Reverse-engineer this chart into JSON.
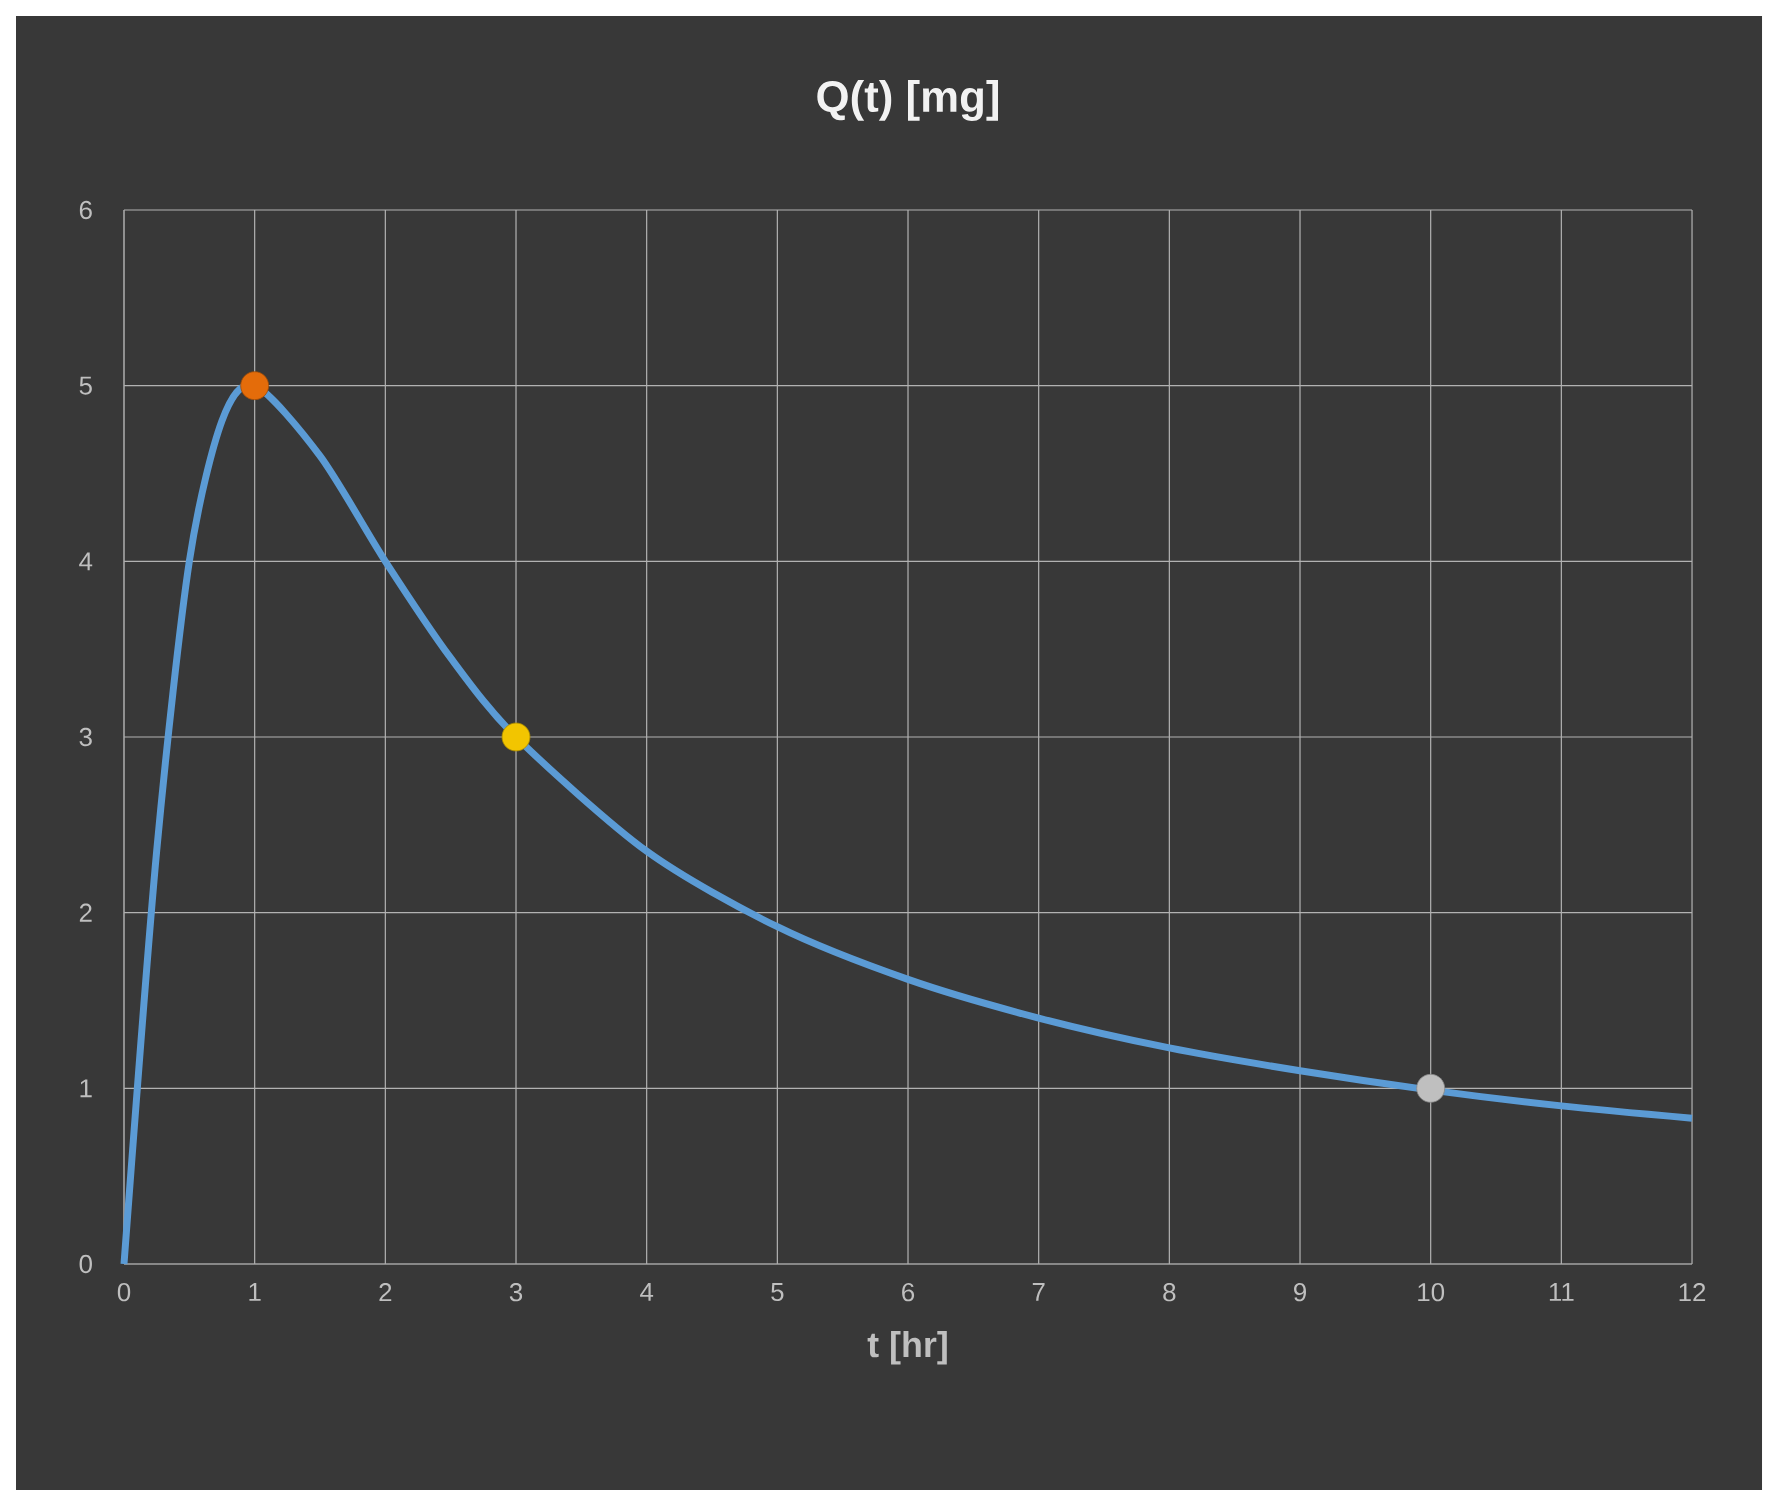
{
  "chart_data": {
    "type": "line",
    "title": "Q(t)  [mg]",
    "xlabel": "t [hr]",
    "xlim": [
      0,
      12
    ],
    "xticks": [
      0,
      1,
      2,
      3,
      4,
      5,
      6,
      7,
      8,
      9,
      10,
      11,
      12
    ],
    "ylim": [
      0,
      6
    ],
    "yticks": [
      0,
      1,
      2,
      3,
      4,
      5,
      6
    ],
    "grid": true,
    "series": [
      {
        "color": "#5b9bd5",
        "x": [
          0,
          0.25,
          0.5,
          0.75,
          1,
          1.5,
          2,
          2.5,
          3,
          4,
          5,
          6,
          7,
          8,
          9,
          10,
          11,
          12
        ],
        "values": [
          0,
          2.35,
          4.0,
          4.8,
          5.0,
          4.6,
          4.0,
          3.45,
          3.0,
          2.35,
          1.92,
          1.62,
          1.4,
          1.23,
          1.1,
          0.99,
          0.9,
          0.83
        ]
      },
      {
        "type": "scatter",
        "x": [
          1,
          3,
          10
        ],
        "values": [
          5,
          3,
          1
        ],
        "colors": [
          "#e46c0a",
          "#f2c500",
          "#bfbfbf"
        ]
      }
    ]
  }
}
